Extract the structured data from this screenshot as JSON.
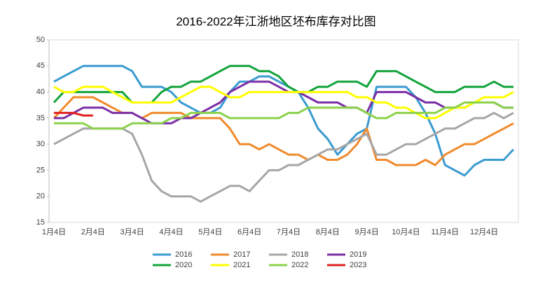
{
  "chart_data": {
    "type": "line",
    "title": "2016-2022年江浙地区坯布库存对比图",
    "categories": [
      "1月4日",
      null,
      null,
      null,
      "2月4日",
      null,
      null,
      null,
      "3月4日",
      null,
      null,
      null,
      "4月4日",
      null,
      null,
      null,
      "5月4日",
      null,
      null,
      null,
      "6月4日",
      null,
      null,
      null,
      "7月4日",
      null,
      null,
      null,
      "8月4日",
      null,
      null,
      null,
      "9月4日",
      null,
      null,
      null,
      "10月4日",
      null,
      null,
      null,
      "11月4日",
      null,
      null,
      null,
      "12月4日",
      null,
      null,
      null
    ],
    "ylim": [
      15,
      50
    ],
    "yticks": [
      15,
      20,
      25,
      30,
      35,
      40,
      45,
      50
    ],
    "grid": false,
    "series": [
      {
        "name": "2016",
        "color": "#3a9bd0",
        "values": [
          42,
          43,
          44,
          45,
          45,
          45,
          45,
          45,
          44,
          41,
          41,
          41,
          40,
          38,
          37,
          36,
          36,
          37,
          40,
          42,
          42,
          43,
          43,
          42,
          41,
          40,
          37,
          33,
          31,
          28,
          30,
          32,
          33,
          41,
          41,
          41,
          41,
          39,
          36,
          32,
          26,
          25,
          24,
          26,
          27,
          27,
          27,
          29
        ]
      },
      {
        "name": "2017",
        "color": "#f08a2c",
        "values": [
          35,
          37,
          39,
          39,
          39,
          38,
          37,
          36,
          36,
          35,
          36,
          36,
          36,
          36,
          35,
          35,
          35,
          35,
          33,
          30,
          30,
          29,
          30,
          29,
          28,
          28,
          27,
          28,
          27,
          27,
          28,
          30,
          33,
          27,
          27,
          26,
          26,
          26,
          27,
          26,
          28,
          29,
          30,
          30,
          31,
          32,
          33,
          34
        ]
      },
      {
        "name": "2018",
        "color": "#a6a6a6",
        "values": [
          30,
          31,
          32,
          33,
          33,
          33,
          33,
          33,
          32,
          28,
          23,
          21,
          20,
          20,
          20,
          19,
          20,
          21,
          22,
          22,
          21,
          23,
          25,
          25,
          26,
          26,
          27,
          28,
          29,
          29,
          30,
          31,
          32,
          28,
          28,
          29,
          30,
          30,
          31,
          32,
          33,
          33,
          34,
          35,
          35,
          36,
          35,
          36
        ]
      },
      {
        "name": "2019",
        "color": "#7b2fa6",
        "values": [
          35,
          35,
          36,
          37,
          37,
          37,
          36,
          36,
          36,
          35,
          34,
          34,
          34,
          35,
          35,
          36,
          37,
          38,
          40,
          41,
          42,
          42,
          42,
          41,
          40,
          40,
          39,
          38,
          38,
          38,
          37,
          37,
          36,
          40,
          40,
          40,
          40,
          39,
          38,
          38,
          37,
          37,
          37,
          38,
          38,
          38,
          37,
          37
        ]
      },
      {
        "name": "2020",
        "color": "#12a33a",
        "values": [
          38,
          40,
          40,
          40,
          40,
          40,
          40,
          40,
          38,
          38,
          38,
          40,
          41,
          41,
          42,
          42,
          43,
          44,
          45,
          45,
          45,
          44,
          44,
          43,
          41,
          40,
          40,
          41,
          41,
          42,
          42,
          42,
          41,
          44,
          44,
          44,
          43,
          42,
          41,
          40,
          40,
          40,
          41,
          41,
          41,
          42,
          41,
          41
        ]
      },
      {
        "name": "2021",
        "color": "#ffff00",
        "values": [
          41,
          40,
          40,
          41,
          41,
          41,
          40,
          39,
          38,
          38,
          38,
          38,
          38,
          39,
          40,
          41,
          41,
          40,
          39,
          39,
          40,
          40,
          40,
          40,
          40,
          40,
          40,
          40,
          40,
          40,
          40,
          39,
          39,
          38,
          38,
          37,
          37,
          36,
          35,
          35,
          36,
          37,
          37,
          38,
          39,
          39,
          39,
          40
        ]
      },
      {
        "name": "2022",
        "color": "#8bd24a",
        "values": [
          34,
          34,
          34,
          34,
          33,
          33,
          33,
          33,
          34,
          34,
          34,
          34,
          35,
          35,
          36,
          36,
          36,
          36,
          35,
          35,
          35,
          35,
          35,
          35,
          36,
          36,
          37,
          37,
          37,
          37,
          37,
          37,
          36,
          35,
          35,
          36,
          36,
          36,
          36,
          36,
          37,
          37,
          38,
          38,
          38,
          38,
          37,
          37
        ]
      },
      {
        "name": "2023",
        "color": "#e02020",
        "values": [
          36,
          36,
          36,
          35.5,
          35.5,
          null,
          null,
          null,
          null,
          null,
          null,
          null,
          null,
          null,
          null,
          null,
          null,
          null,
          null,
          null,
          null,
          null,
          null,
          null,
          null,
          null,
          null,
          null,
          null,
          null,
          null,
          null,
          null,
          null,
          null,
          null,
          null,
          null,
          null,
          null,
          null,
          null,
          null,
          null,
          null,
          null,
          null,
          null
        ]
      }
    ]
  }
}
